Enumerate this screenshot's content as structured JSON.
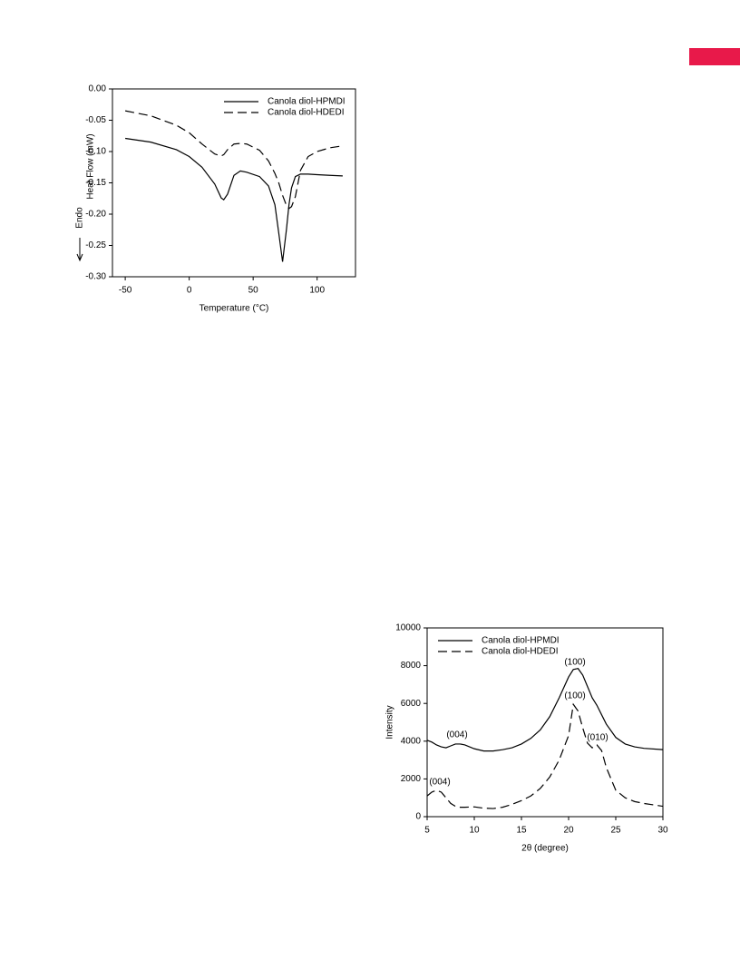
{
  "chart_data": [
    {
      "type": "line",
      "xlabel": "Temperature (°C)",
      "ylabel": "Heat Flow (mW)",
      "annotations": [
        "Endo"
      ],
      "x": [
        -50,
        -30,
        -10,
        0,
        10,
        20,
        25,
        27,
        30,
        35,
        40,
        45,
        55,
        62,
        67,
        70,
        73,
        76,
        78,
        80,
        83,
        87,
        93,
        100,
        110,
        120
      ],
      "series": [
        {
          "name": "Canola diol-HPMDI",
          "color": "#000000",
          "linestyle": "solid",
          "values": [
            -0.079,
            -0.085,
            -0.097,
            -0.108,
            -0.125,
            -0.152,
            -0.174,
            -0.177,
            -0.168,
            -0.138,
            -0.131,
            -0.133,
            -0.14,
            -0.155,
            -0.185,
            -0.23,
            -0.276,
            -0.225,
            -0.185,
            -0.158,
            -0.14,
            -0.136,
            -0.136,
            -0.137,
            -0.138,
            -0.139
          ]
        },
        {
          "name": "Canola diol-HDEDI",
          "color": "#000000",
          "linestyle": "dashed",
          "values": [
            -0.035,
            -0.043,
            -0.058,
            -0.07,
            -0.088,
            -0.104,
            -0.107,
            -0.105,
            -0.097,
            -0.088,
            -0.087,
            -0.088,
            -0.098,
            -0.115,
            -0.135,
            -0.15,
            -0.17,
            -0.186,
            -0.191,
            -0.188,
            -0.172,
            -0.13,
            -0.108,
            -0.1,
            -0.094,
            -0.091
          ]
        }
      ],
      "xlim": [
        -60,
        130
      ],
      "xticks": [
        -50,
        0,
        50,
        100
      ],
      "ylim": [
        -0.3,
        0.0
      ],
      "yticks": [
        {
          "value": 0,
          "label": "0.00"
        },
        {
          "value": -0.05,
          "label": "-0.05"
        },
        {
          "value": -0.1,
          "label": "-0.10"
        },
        {
          "value": -0.15,
          "label": "-0.15"
        },
        {
          "value": -0.2,
          "label": "-0.20"
        },
        {
          "value": -0.25,
          "label": "-0.25"
        },
        {
          "value": -0.3,
          "label": "-0.30"
        }
      ],
      "legend": "upper right",
      "grid": false
    },
    {
      "type": "line",
      "xlabel": "2θ (degree)",
      "ylabel": "Intensity",
      "annotations": [
        "(004)",
        "(100)",
        "(100)",
        "(010)",
        "(004)"
      ],
      "x": [
        5,
        5.5,
        6,
        6.5,
        7,
        7.5,
        8,
        8.5,
        9,
        10,
        11,
        12,
        13,
        14,
        15,
        16,
        17,
        18,
        19,
        20,
        20.5,
        21,
        21.5,
        22,
        22.5,
        23,
        23.5,
        24,
        25,
        26,
        27,
        28,
        30
      ],
      "series": [
        {
          "name": "Canola diol-HPMDI",
          "color": "#000000",
          "linestyle": "solid",
          "values": [
            4050,
            3950,
            3800,
            3700,
            3650,
            3750,
            3850,
            3850,
            3800,
            3600,
            3480,
            3480,
            3550,
            3650,
            3850,
            4150,
            4600,
            5300,
            6300,
            7400,
            7800,
            7850,
            7500,
            6900,
            6300,
            5900,
            5400,
            4900,
            4200,
            3850,
            3700,
            3620,
            3550
          ]
        },
        {
          "name": "Canola diol-HDEDI",
          "color": "#000000",
          "linestyle": "dashed",
          "values": [
            1100,
            1300,
            1400,
            1300,
            1000,
            700,
            550,
            500,
            500,
            520,
            450,
            430,
            500,
            650,
            850,
            1100,
            1500,
            2100,
            3000,
            4300,
            5950,
            5600,
            4700,
            3900,
            3650,
            3800,
            3500,
            2600,
            1400,
            1000,
            800,
            700,
            550
          ]
        }
      ],
      "xlim": [
        5,
        30
      ],
      "xticks": [
        5,
        10,
        15,
        20,
        25,
        30
      ],
      "ylim": [
        0,
        10000
      ],
      "yticks": [
        0,
        2000,
        4000,
        6000,
        8000,
        10000
      ],
      "legend": "upper left",
      "grid": false
    }
  ]
}
